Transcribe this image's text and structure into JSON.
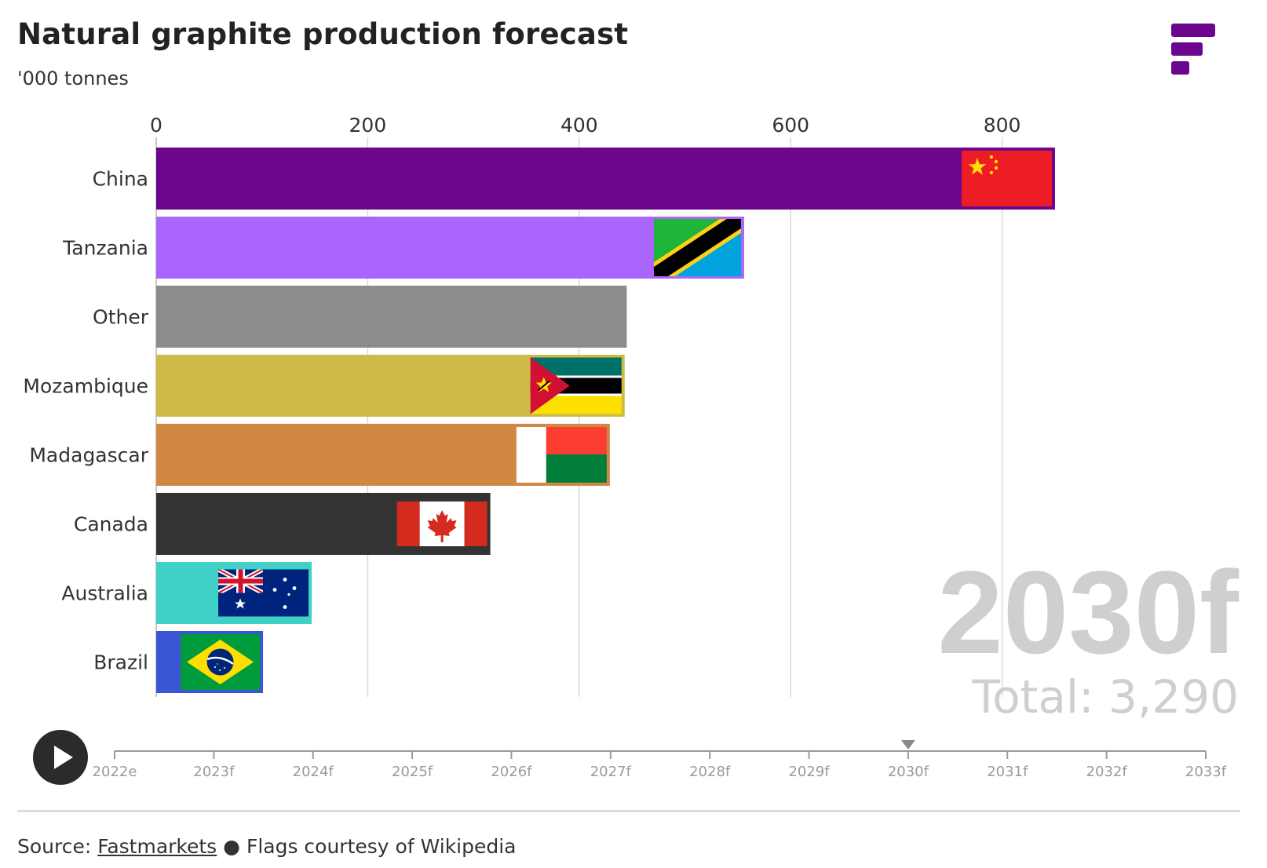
{
  "header": {
    "title": "Natural graphite production forecast",
    "subtitle": "'000 tonnes"
  },
  "colors": {
    "brand": "#6c068c",
    "gridline": "#d9d9d9",
    "year_watermark": "#cfcfcf"
  },
  "chart_data": {
    "type": "bar",
    "orientation": "horizontal",
    "unit": "'000 tonnes",
    "xlim": [
      0,
      850
    ],
    "x_ticks": [
      0,
      200,
      400,
      600,
      800
    ],
    "grid": true,
    "categories": [
      "China",
      "Tanzania",
      "Other",
      "Mozambique",
      "Madagascar",
      "Canada",
      "Australia",
      "Brazil"
    ],
    "values": [
      850,
      556,
      445,
      443,
      429,
      316,
      147,
      101
    ],
    "bar_colors": [
      "#6c068c",
      "#a965fc",
      "#8c8c8c",
      "#cfba48",
      "#d08842",
      "#333333",
      "#3fd1c8",
      "#3a56d4"
    ],
    "flag_icons": [
      "china-flag-icon",
      "tanzania-flag-icon",
      "",
      "mozambique-flag-icon",
      "madagascar-flag-icon",
      "canada-flag-icon",
      "australia-flag-icon",
      "brazil-flag-icon"
    ],
    "year_label": "2030f",
    "total_label": "Total: 3,290"
  },
  "timeline": {
    "labels": [
      "2022e",
      "2023f",
      "2024f",
      "2025f",
      "2026f",
      "2027f",
      "2028f",
      "2029f",
      "2030f",
      "2031f",
      "2032f",
      "2033f"
    ],
    "current_index": 8
  },
  "footer": {
    "source_prefix": "Source: ",
    "source_link": "Fastmarkets",
    "separator": " ● ",
    "credit": "Flags courtesy of Wikipedia"
  }
}
